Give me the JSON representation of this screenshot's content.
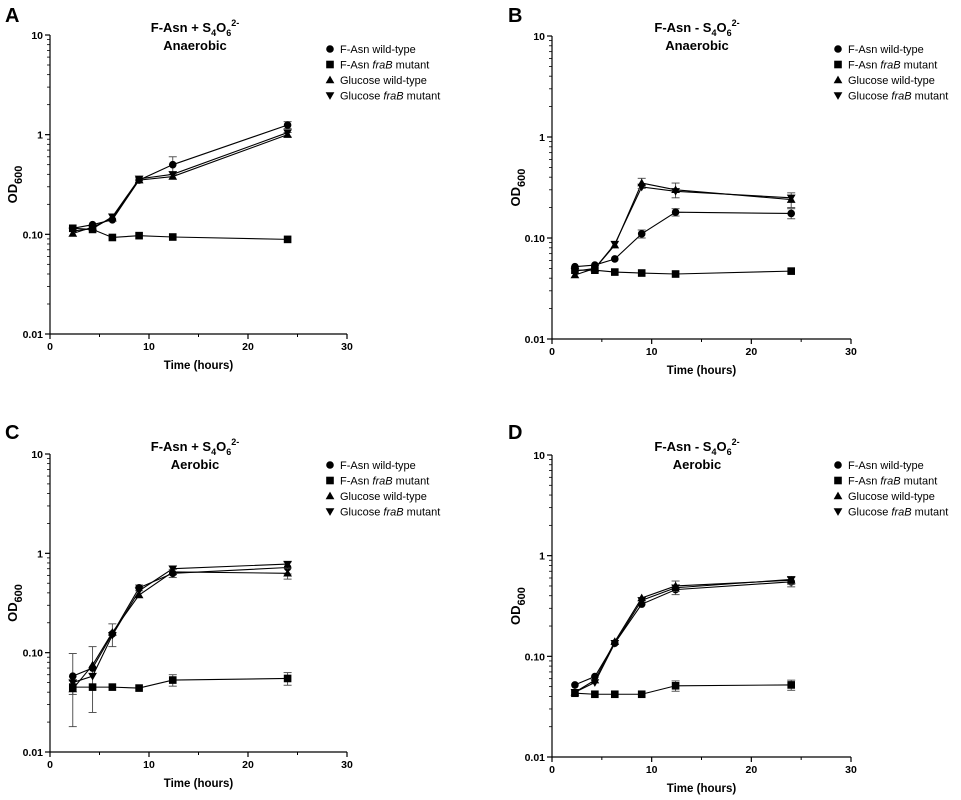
{
  "chart_data": [
    {
      "panel": "A",
      "type": "line",
      "title_main": "F-Asn + S",
      "title_sub1": "4",
      "title_mid": "O",
      "title_sub2": "6",
      "title_sup": "2-",
      "title_line2": "Anaerobic",
      "xlabel": "Time (hours)",
      "ylabel_main": "OD",
      "ylabel_sub": "600",
      "xlim": [
        0,
        30
      ],
      "ylim": [
        0.01,
        10
      ],
      "yscale": "log",
      "xticks": [
        "0",
        "10",
        "20",
        "30"
      ],
      "yticks": [
        "0.01",
        "0.10",
        "1",
        "10"
      ],
      "legend_position": "top-right",
      "x": [
        2.3,
        4.3,
        6.3,
        9,
        12.4,
        24
      ],
      "series": [
        {
          "name_pre": "F-Asn wild-type",
          "name_ital": "",
          "name_post": "",
          "marker": "circle",
          "values": [
            0.115,
            0.125,
            0.14,
            0.35,
            0.5,
            1.25
          ],
          "err": [
            0,
            0,
            0,
            0.02,
            0.1,
            0.1
          ]
        },
        {
          "name_pre": "F-Asn ",
          "name_ital": "fraB",
          "name_post": " mutant",
          "marker": "square",
          "values": [
            0.115,
            0.112,
            0.093,
            0.097,
            0.094,
            0.089
          ],
          "err": [
            0,
            0,
            0,
            0,
            0,
            0
          ]
        },
        {
          "name_pre": "Glucose wild-type",
          "name_ital": "",
          "name_post": "",
          "marker": "triangle-up",
          "values": [
            0.102,
            0.118,
            0.145,
            0.35,
            0.38,
            1.0
          ],
          "err": [
            0,
            0,
            0,
            0,
            0,
            0.05
          ]
        },
        {
          "name_pre": "Glucose ",
          "name_ital": "fraB",
          "name_post": " mutant",
          "marker": "triangle-down",
          "values": [
            0.108,
            0.114,
            0.15,
            0.36,
            0.4,
            1.05
          ],
          "err": [
            0,
            0,
            0,
            0,
            0,
            0
          ]
        }
      ]
    },
    {
      "panel": "B",
      "type": "line",
      "title_main": "F-Asn - S",
      "title_sub1": "4",
      "title_mid": "O",
      "title_sub2": "6",
      "title_sup": "2-",
      "title_line2": "Anaerobic",
      "xlabel": "Time (hours)",
      "ylabel_main": "OD",
      "ylabel_sub": "600",
      "xlim": [
        0,
        30
      ],
      "ylim": [
        0.01,
        10
      ],
      "yscale": "log",
      "xticks": [
        "0",
        "10",
        "20",
        "30"
      ],
      "yticks": [
        "0.01",
        "0.10",
        "1",
        "10"
      ],
      "legend_position": "top-right",
      "x": [
        2.3,
        4.3,
        6.3,
        9,
        12.4,
        24
      ],
      "series": [
        {
          "name_pre": "F-Asn wild-type",
          "name_ital": "",
          "name_post": "",
          "marker": "circle",
          "values": [
            0.052,
            0.054,
            0.062,
            0.11,
            0.18,
            0.175
          ],
          "err": [
            0,
            0,
            0,
            0.01,
            0.015,
            0.02
          ]
        },
        {
          "name_pre": "F-Asn ",
          "name_ital": "fraB",
          "name_post": " mutant",
          "marker": "square",
          "values": [
            0.048,
            0.048,
            0.046,
            0.045,
            0.044,
            0.047
          ],
          "err": [
            0,
            0,
            0,
            0,
            0,
            0
          ]
        },
        {
          "name_pre": "Glucose wild-type",
          "name_ital": "",
          "name_post": "",
          "marker": "triangle-up",
          "values": [
            0.043,
            0.05,
            0.085,
            0.35,
            0.3,
            0.24
          ],
          "err": [
            0,
            0,
            0,
            0.04,
            0.05,
            0.04
          ]
        },
        {
          "name_pre": "Glucose ",
          "name_ital": "fraB",
          "name_post": " mutant",
          "marker": "triangle-down",
          "values": [
            0.047,
            0.05,
            0.087,
            0.32,
            0.29,
            0.25
          ],
          "err": [
            0,
            0,
            0,
            0,
            0,
            0
          ]
        }
      ]
    },
    {
      "panel": "C",
      "type": "line",
      "title_main": "F-Asn + S",
      "title_sub1": "4",
      "title_mid": "O",
      "title_sub2": "6",
      "title_sup": "2-",
      "title_line2": "Aerobic",
      "xlabel": "Time (hours)",
      "ylabel_main": "OD",
      "ylabel_sub": "600",
      "xlim": [
        0,
        30
      ],
      "ylim": [
        0.01,
        10
      ],
      "yscale": "log",
      "xticks": [
        "0",
        "10",
        "20",
        "30"
      ],
      "yticks": [
        "0.01",
        "0.10",
        "1",
        "10"
      ],
      "legend_position": "top-right",
      "x": [
        2.3,
        4.3,
        6.3,
        9,
        12.4,
        24
      ],
      "series": [
        {
          "name_pre": "F-Asn wild-type",
          "name_ital": "",
          "name_post": "",
          "marker": "circle",
          "values": [
            0.058,
            0.07,
            0.155,
            0.45,
            0.63,
            0.72
          ],
          "err": [
            0.04,
            0.045,
            0.04,
            0.03,
            0.06,
            0.1
          ]
        },
        {
          "name_pre": "F-Asn ",
          "name_ital": "fraB",
          "name_post": " mutant",
          "marker": "square",
          "values": [
            0.045,
            0.045,
            0.045,
            0.044,
            0.053,
            0.055
          ],
          "err": [
            0.007,
            0,
            0,
            0,
            0.007,
            0.008
          ]
        },
        {
          "name_pre": "Glucose wild-type",
          "name_ital": "",
          "name_post": "",
          "marker": "triangle-up",
          "values": [
            0.043,
            0.075,
            0.16,
            0.38,
            0.65,
            0.63
          ],
          "err": [
            0,
            0,
            0,
            0,
            0,
            0.08
          ]
        },
        {
          "name_pre": "Glucose ",
          "name_ital": "fraB",
          "name_post": " mutant",
          "marker": "triangle-down",
          "values": [
            0.05,
            0.058,
            0.15,
            0.42,
            0.7,
            0.78
          ],
          "err": [
            0,
            0,
            0,
            0,
            0,
            0
          ]
        }
      ]
    },
    {
      "panel": "D",
      "type": "line",
      "title_main": "F-Asn - S",
      "title_sub1": "4",
      "title_mid": "O",
      "title_sub2": "6",
      "title_sup": "2-",
      "title_line2": "Aerobic",
      "xlabel": "Time (hours)",
      "ylabel_main": "OD",
      "ylabel_sub": "600",
      "xlim": [
        0,
        30
      ],
      "ylim": [
        0.01,
        10
      ],
      "yscale": "log",
      "xticks": [
        "0",
        "10",
        "20",
        "30"
      ],
      "yticks": [
        "0.01",
        "0.10",
        "1",
        "10"
      ],
      "legend_position": "top-right",
      "x": [
        2.3,
        4.3,
        6.3,
        9,
        12.4,
        24
      ],
      "series": [
        {
          "name_pre": "F-Asn wild-type",
          "name_ital": "",
          "name_post": "",
          "marker": "circle",
          "values": [
            0.052,
            0.063,
            0.135,
            0.33,
            0.46,
            0.55
          ],
          "err": [
            0,
            0,
            0,
            0,
            0.05,
            0.06
          ]
        },
        {
          "name_pre": "F-Asn ",
          "name_ital": "fraB",
          "name_post": " mutant",
          "marker": "square",
          "values": [
            0.043,
            0.042,
            0.042,
            0.042,
            0.051,
            0.052
          ],
          "err": [
            0,
            0,
            0,
            0,
            0.006,
            0.006
          ]
        },
        {
          "name_pre": "Glucose wild-type",
          "name_ital": "",
          "name_post": "",
          "marker": "triangle-up",
          "values": [
            0.044,
            0.058,
            0.14,
            0.38,
            0.5,
            0.57
          ],
          "err": [
            0,
            0,
            0,
            0,
            0.06,
            0.05
          ]
        },
        {
          "name_pre": "Glucose ",
          "name_ital": "fraB",
          "name_post": " mutant",
          "marker": "triangle-down",
          "values": [
            0.044,
            0.055,
            0.135,
            0.36,
            0.48,
            0.58
          ],
          "err": [
            0,
            0,
            0,
            0,
            0,
            0
          ]
        }
      ]
    }
  ]
}
